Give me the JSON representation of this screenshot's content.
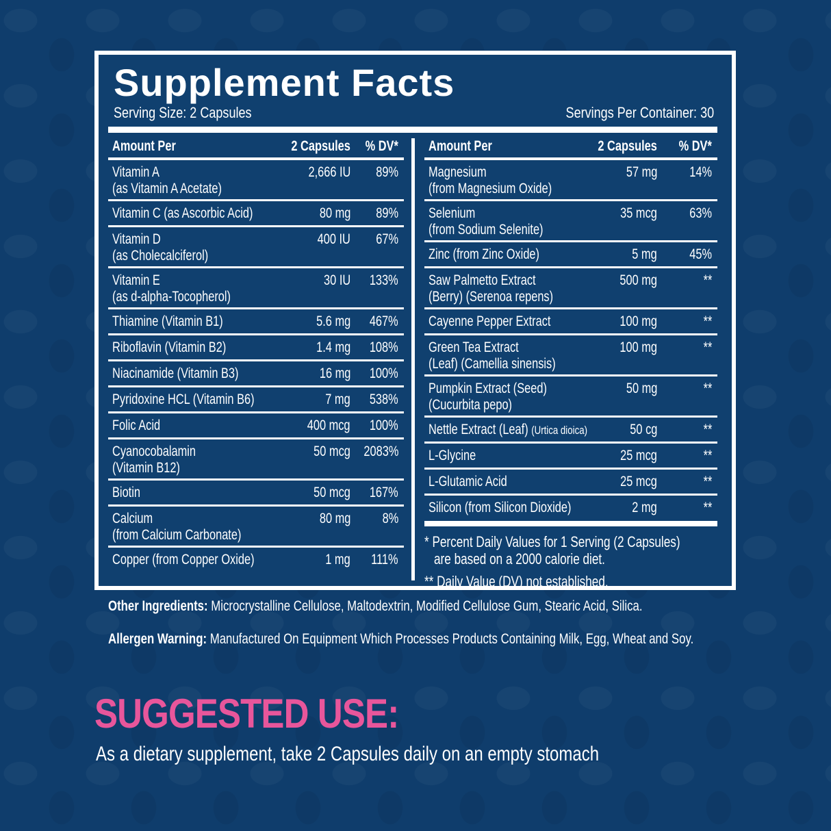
{
  "title": "Supplement Facts",
  "serving_size": "Serving Size: 2 Capsules",
  "servings_per_container": "Servings Per Container: 30",
  "header": {
    "amount_per": "Amount Per",
    "capsules": "2 Capsules",
    "dv": "% DV*"
  },
  "left_rows": [
    {
      "name": "Vitamin A",
      "sub": "(as Vitamin A Acetate)",
      "amount": "2,666 IU",
      "dv": "89%"
    },
    {
      "name": "Vitamin C (as Ascorbic Acid)",
      "amount": "80 mg",
      "dv": "89%"
    },
    {
      "name": "Vitamin D",
      "sub": "(as Cholecalciferol)",
      "amount": "400 IU",
      "dv": "67%"
    },
    {
      "name": "Vitamin E",
      "sub": "(as d-alpha-Tocopherol)",
      "amount": "30 IU",
      "dv": "133%"
    },
    {
      "name": "Thiamine (Vitamin B1)",
      "amount": "5.6 mg",
      "dv": "467%"
    },
    {
      "name": "Riboflavin (Vitamin B2)",
      "amount": "1.4 mg",
      "dv": "108%"
    },
    {
      "name": "Niacinamide (Vitamin B3)",
      "amount": "16 mg",
      "dv": "100%"
    },
    {
      "name": "Pyridoxine HCL (Vitamin B6)",
      "amount": "7 mg",
      "dv": "538%"
    },
    {
      "name": "Folic Acid",
      "amount": "400 mcg",
      "dv": "100%"
    },
    {
      "name": "Cyanocobalamin",
      "sub": "(Vitamin B12)",
      "amount": "50 mcg",
      "dv": "2083%"
    },
    {
      "name": "Biotin",
      "amount": "50 mcg",
      "dv": "167%"
    },
    {
      "name": "Calcium",
      "sub": "(from Calcium Carbonate)",
      "amount": "80 mg",
      "dv": "8%"
    },
    {
      "name": " Copper (from Copper Oxide)",
      "amount": "1 mg",
      "dv": "111%"
    }
  ],
  "right_rows": [
    {
      "name": "Magnesium",
      "sub": "(from Magnesium Oxide)",
      "amount": "57 mg",
      "dv": "14%"
    },
    {
      "name": "Selenium",
      "sub": "(from Sodium Selenite)",
      "amount": "35 mcg",
      "dv": "63%"
    },
    {
      "name": "Zinc (from Zinc Oxide)",
      "amount": "5 mg",
      "dv": "45%"
    },
    {
      "name": "Saw Palmetto Extract",
      "sub": "(Berry) (Serenoa repens)",
      "amount": "500 mg",
      "dv": "**"
    },
    {
      "name": "Cayenne Pepper Extract",
      "amount": "100 mg",
      "dv": "**"
    },
    {
      "name": "Green Tea Extract",
      "sub": "(Leaf) (Camellia sinensis)",
      "amount": "100 mg",
      "dv": "**"
    },
    {
      "name": "Pumpkin Extract (Seed)",
      "sub": "(Cucurbita pepo)",
      "amount": "50 mg",
      "dv": "**"
    },
    {
      "name": "Nettle Extract (Leaf) ",
      "small": "(Urtica dioica)",
      "amount": "50 cg",
      "dv": "**"
    },
    {
      "name": "L-Glycine",
      "amount": "25 mcg",
      "dv": "**"
    },
    {
      "name": "L-Glutamic Acid",
      "amount": "25 mcg",
      "dv": "**"
    },
    {
      "name": "Silicon (from Silicon Dioxide)",
      "amount": "2 mg",
      "dv": "**"
    }
  ],
  "footnotes": {
    "line1": "* Percent Daily Values for 1 Serving (2 Capsules)",
    "line2": "are based on a 2000 calorie diet.",
    "line3": "** Daily Value (DV) not established."
  },
  "other_ingredients": {
    "label": "Other Ingredients:",
    "text": " Microcrystalline Cellulose, Maltodextrin, Modified Cellulose Gum, Stearic Acid, Silica."
  },
  "allergen": {
    "label": "Allergen Warning:",
    "text": " Manufactured On Equipment Which Processes Products Containing Milk, Egg, Wheat and Soy."
  },
  "suggested_use": {
    "heading": "SUGGESTED USE:",
    "text": "As a dietary supplement, take  2 Capsules daily on an empty stomach"
  },
  "colors": {
    "background": "#0f3d6c",
    "accent": "#e8569b",
    "text": "#ffffff"
  }
}
